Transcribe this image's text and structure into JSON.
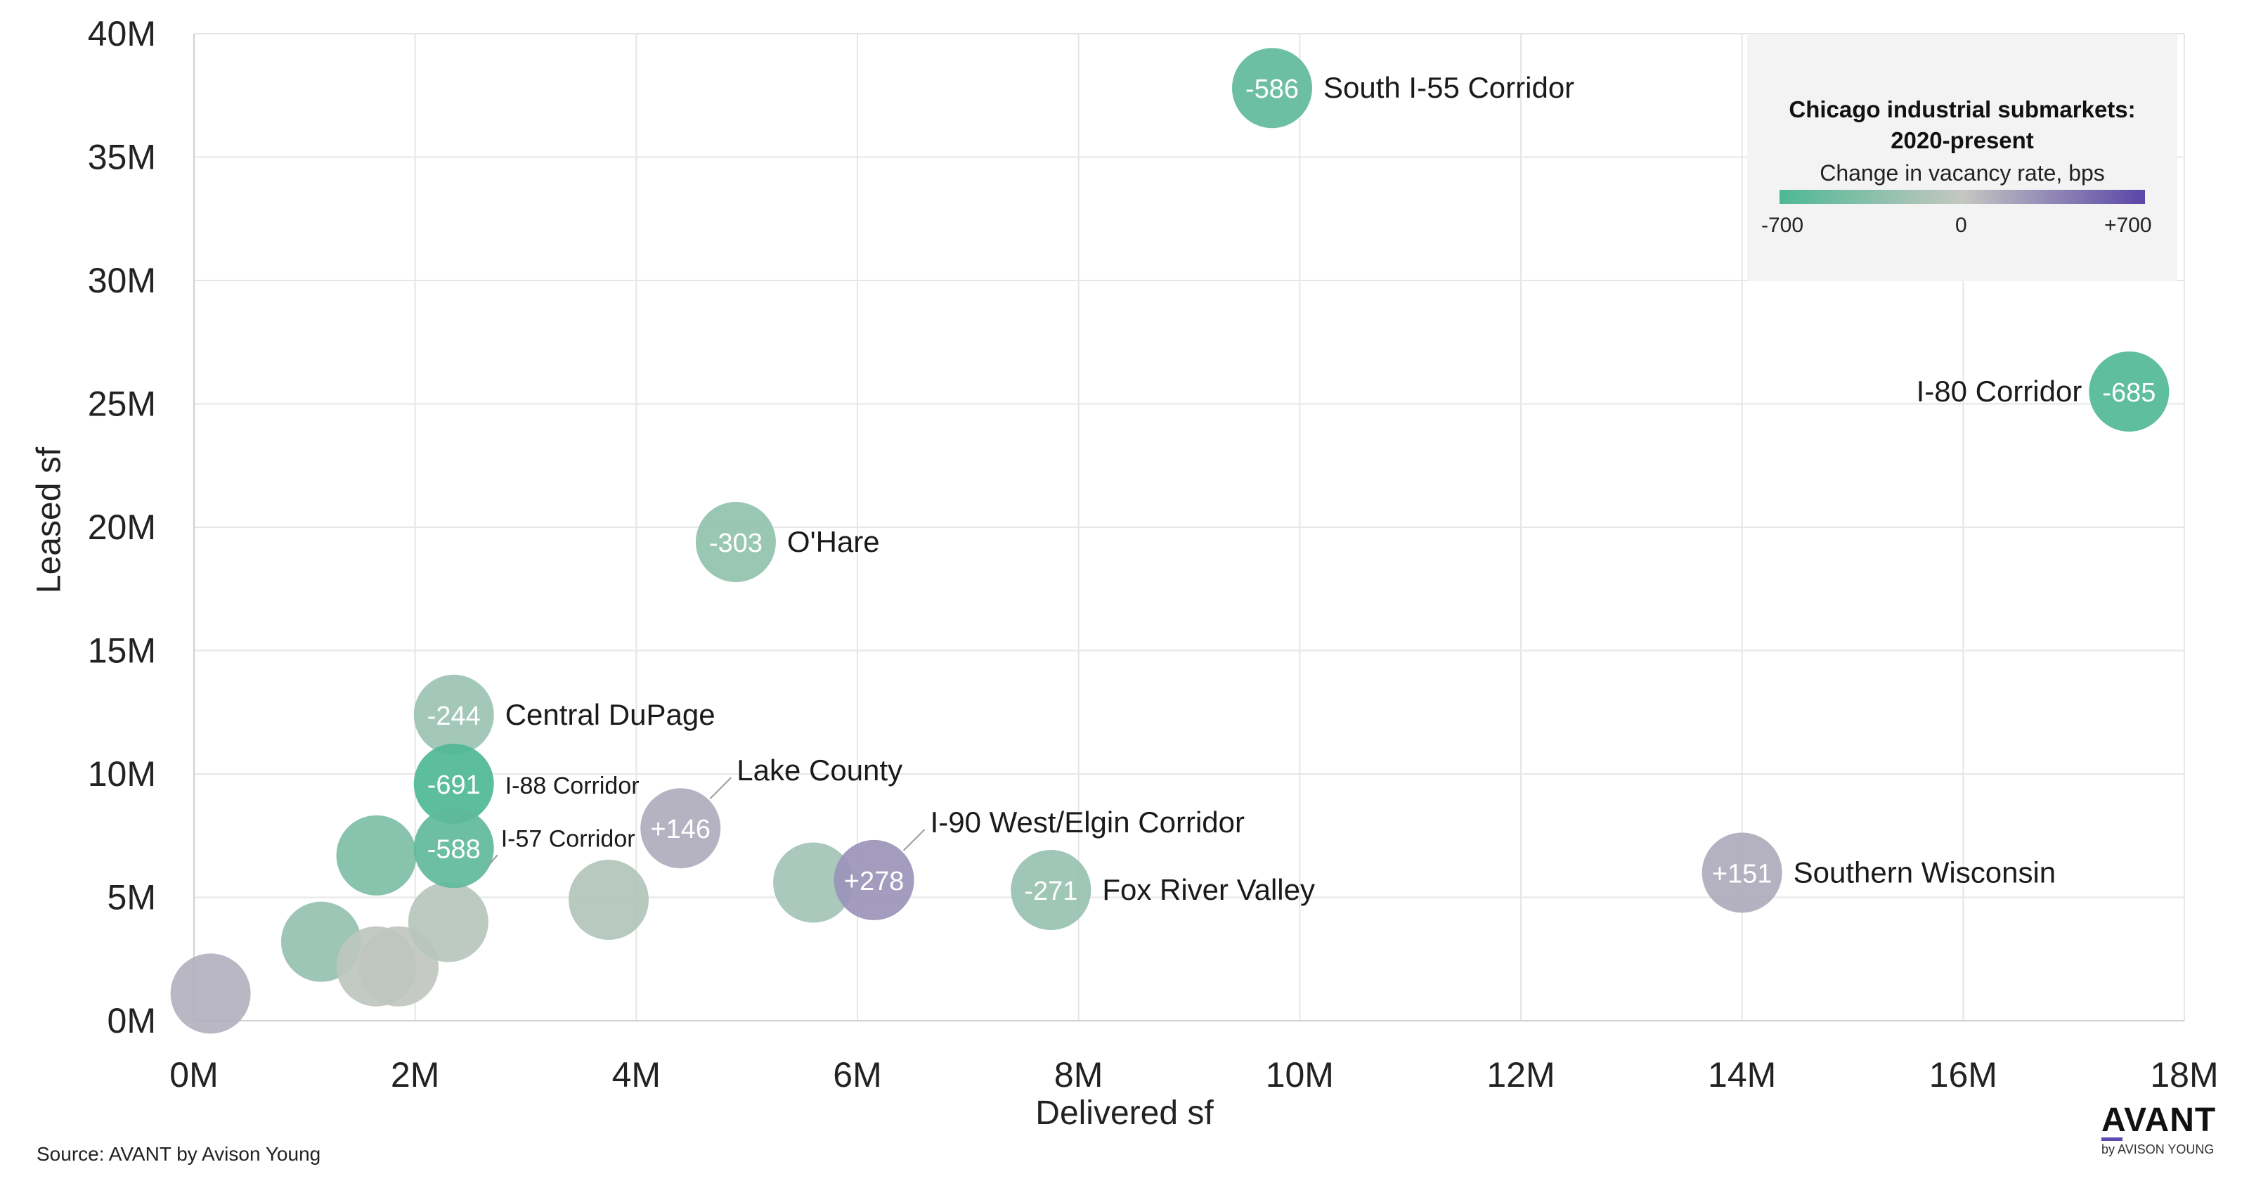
{
  "chart_data": {
    "type": "scatter",
    "title": "Chicago industrial submarkets: 2020-present",
    "subtitle": "Change in vacancy rate, bps",
    "xlabel": "Delivered sf",
    "ylabel": "Leased sf",
    "xlim": [
      0,
      18000000
    ],
    "ylim": [
      0,
      40000000
    ],
    "x_ticks": [
      0,
      2000000,
      4000000,
      6000000,
      8000000,
      10000000,
      12000000,
      14000000,
      16000000,
      18000000
    ],
    "x_tick_labels": [
      "0M",
      "2M",
      "4M",
      "6M",
      "8M",
      "10M",
      "12M",
      "14M",
      "16M",
      "18M"
    ],
    "y_ticks": [
      0,
      5000000,
      10000000,
      15000000,
      20000000,
      25000000,
      30000000,
      35000000,
      40000000
    ],
    "y_tick_labels": [
      "0M",
      "5M",
      "10M",
      "15M",
      "20M",
      "25M",
      "30M",
      "35M",
      "40M"
    ],
    "grid": true,
    "color_scale": {
      "min": -700,
      "mid": 0,
      "max": 700,
      "min_label": "-700",
      "mid_label": "0",
      "max_label": "+700",
      "min_color": "#4db894",
      "mid_color": "#c5c7c2",
      "max_color": "#5a46a8"
    },
    "legend_placement": "top-right",
    "points": [
      {
        "name": "South I-55 Corridor",
        "value_label": "-586",
        "change_bps": -586,
        "x": 9750000,
        "y": 37800000,
        "label_side": "right"
      },
      {
        "name": "I-80 Corridor",
        "value_label": "-685",
        "change_bps": -685,
        "x": 17500000,
        "y": 25500000,
        "label_side": "left"
      },
      {
        "name": "O'Hare",
        "value_label": "-303",
        "change_bps": -303,
        "x": 4900000,
        "y": 19400000,
        "label_side": "right"
      },
      {
        "name": "Central DuPage",
        "value_label": "-244",
        "change_bps": -244,
        "x": 2350000,
        "y": 12400000,
        "label_side": "right"
      },
      {
        "name": "I-88 Corridor",
        "value_label": "-691",
        "change_bps": -691,
        "x": 2350000,
        "y": 9600000,
        "label_side": "right"
      },
      {
        "name": "I-57 Corridor",
        "value_label": "-588",
        "change_bps": -588,
        "x": 2350000,
        "y": 7000000,
        "label_side": "right"
      },
      {
        "name": "Lake County",
        "value_label": "+146",
        "change_bps": 146,
        "x": 4400000,
        "y": 7800000,
        "label_side": "upper-right"
      },
      {
        "name": "I-90 West/Elgin Corridor",
        "value_label": "+278",
        "change_bps": 278,
        "x": 6150000,
        "y": 5700000,
        "label_side": "upper-right"
      },
      {
        "name": "Fox River Valley",
        "value_label": "-271",
        "change_bps": -271,
        "x": 7750000,
        "y": 5300000,
        "label_side": "right"
      },
      {
        "name": "Southern Wisconsin",
        "value_label": "+151",
        "change_bps": 151,
        "x": 14000000,
        "y": 6000000,
        "label_side": "right"
      },
      {
        "name": "",
        "value_label": "",
        "change_bps": -420,
        "x": 1650000,
        "y": 6700000
      },
      {
        "name": "",
        "value_label": "",
        "change_bps": -280,
        "x": 1150000,
        "y": 3200000
      },
      {
        "name": "",
        "value_label": "",
        "change_bps": -30,
        "x": 1850000,
        "y": 2200000
      },
      {
        "name": "",
        "value_label": "",
        "change_bps": -40,
        "x": 1650000,
        "y": 2200000
      },
      {
        "name": "",
        "value_label": "",
        "change_bps": -90,
        "x": 2300000,
        "y": 4000000
      },
      {
        "name": "",
        "value_label": "",
        "change_bps": -110,
        "x": 3750000,
        "y": 4900000
      },
      {
        "name": "",
        "value_label": "",
        "change_bps": -200,
        "x": 5600000,
        "y": 5600000
      },
      {
        "name": "",
        "value_label": "",
        "change_bps": 120,
        "x": 150000,
        "y": 1100000
      }
    ]
  },
  "source": "Source: AVANT by Avison Young",
  "brand": {
    "name": "AVANT",
    "sub": "by AVISON YOUNG"
  }
}
